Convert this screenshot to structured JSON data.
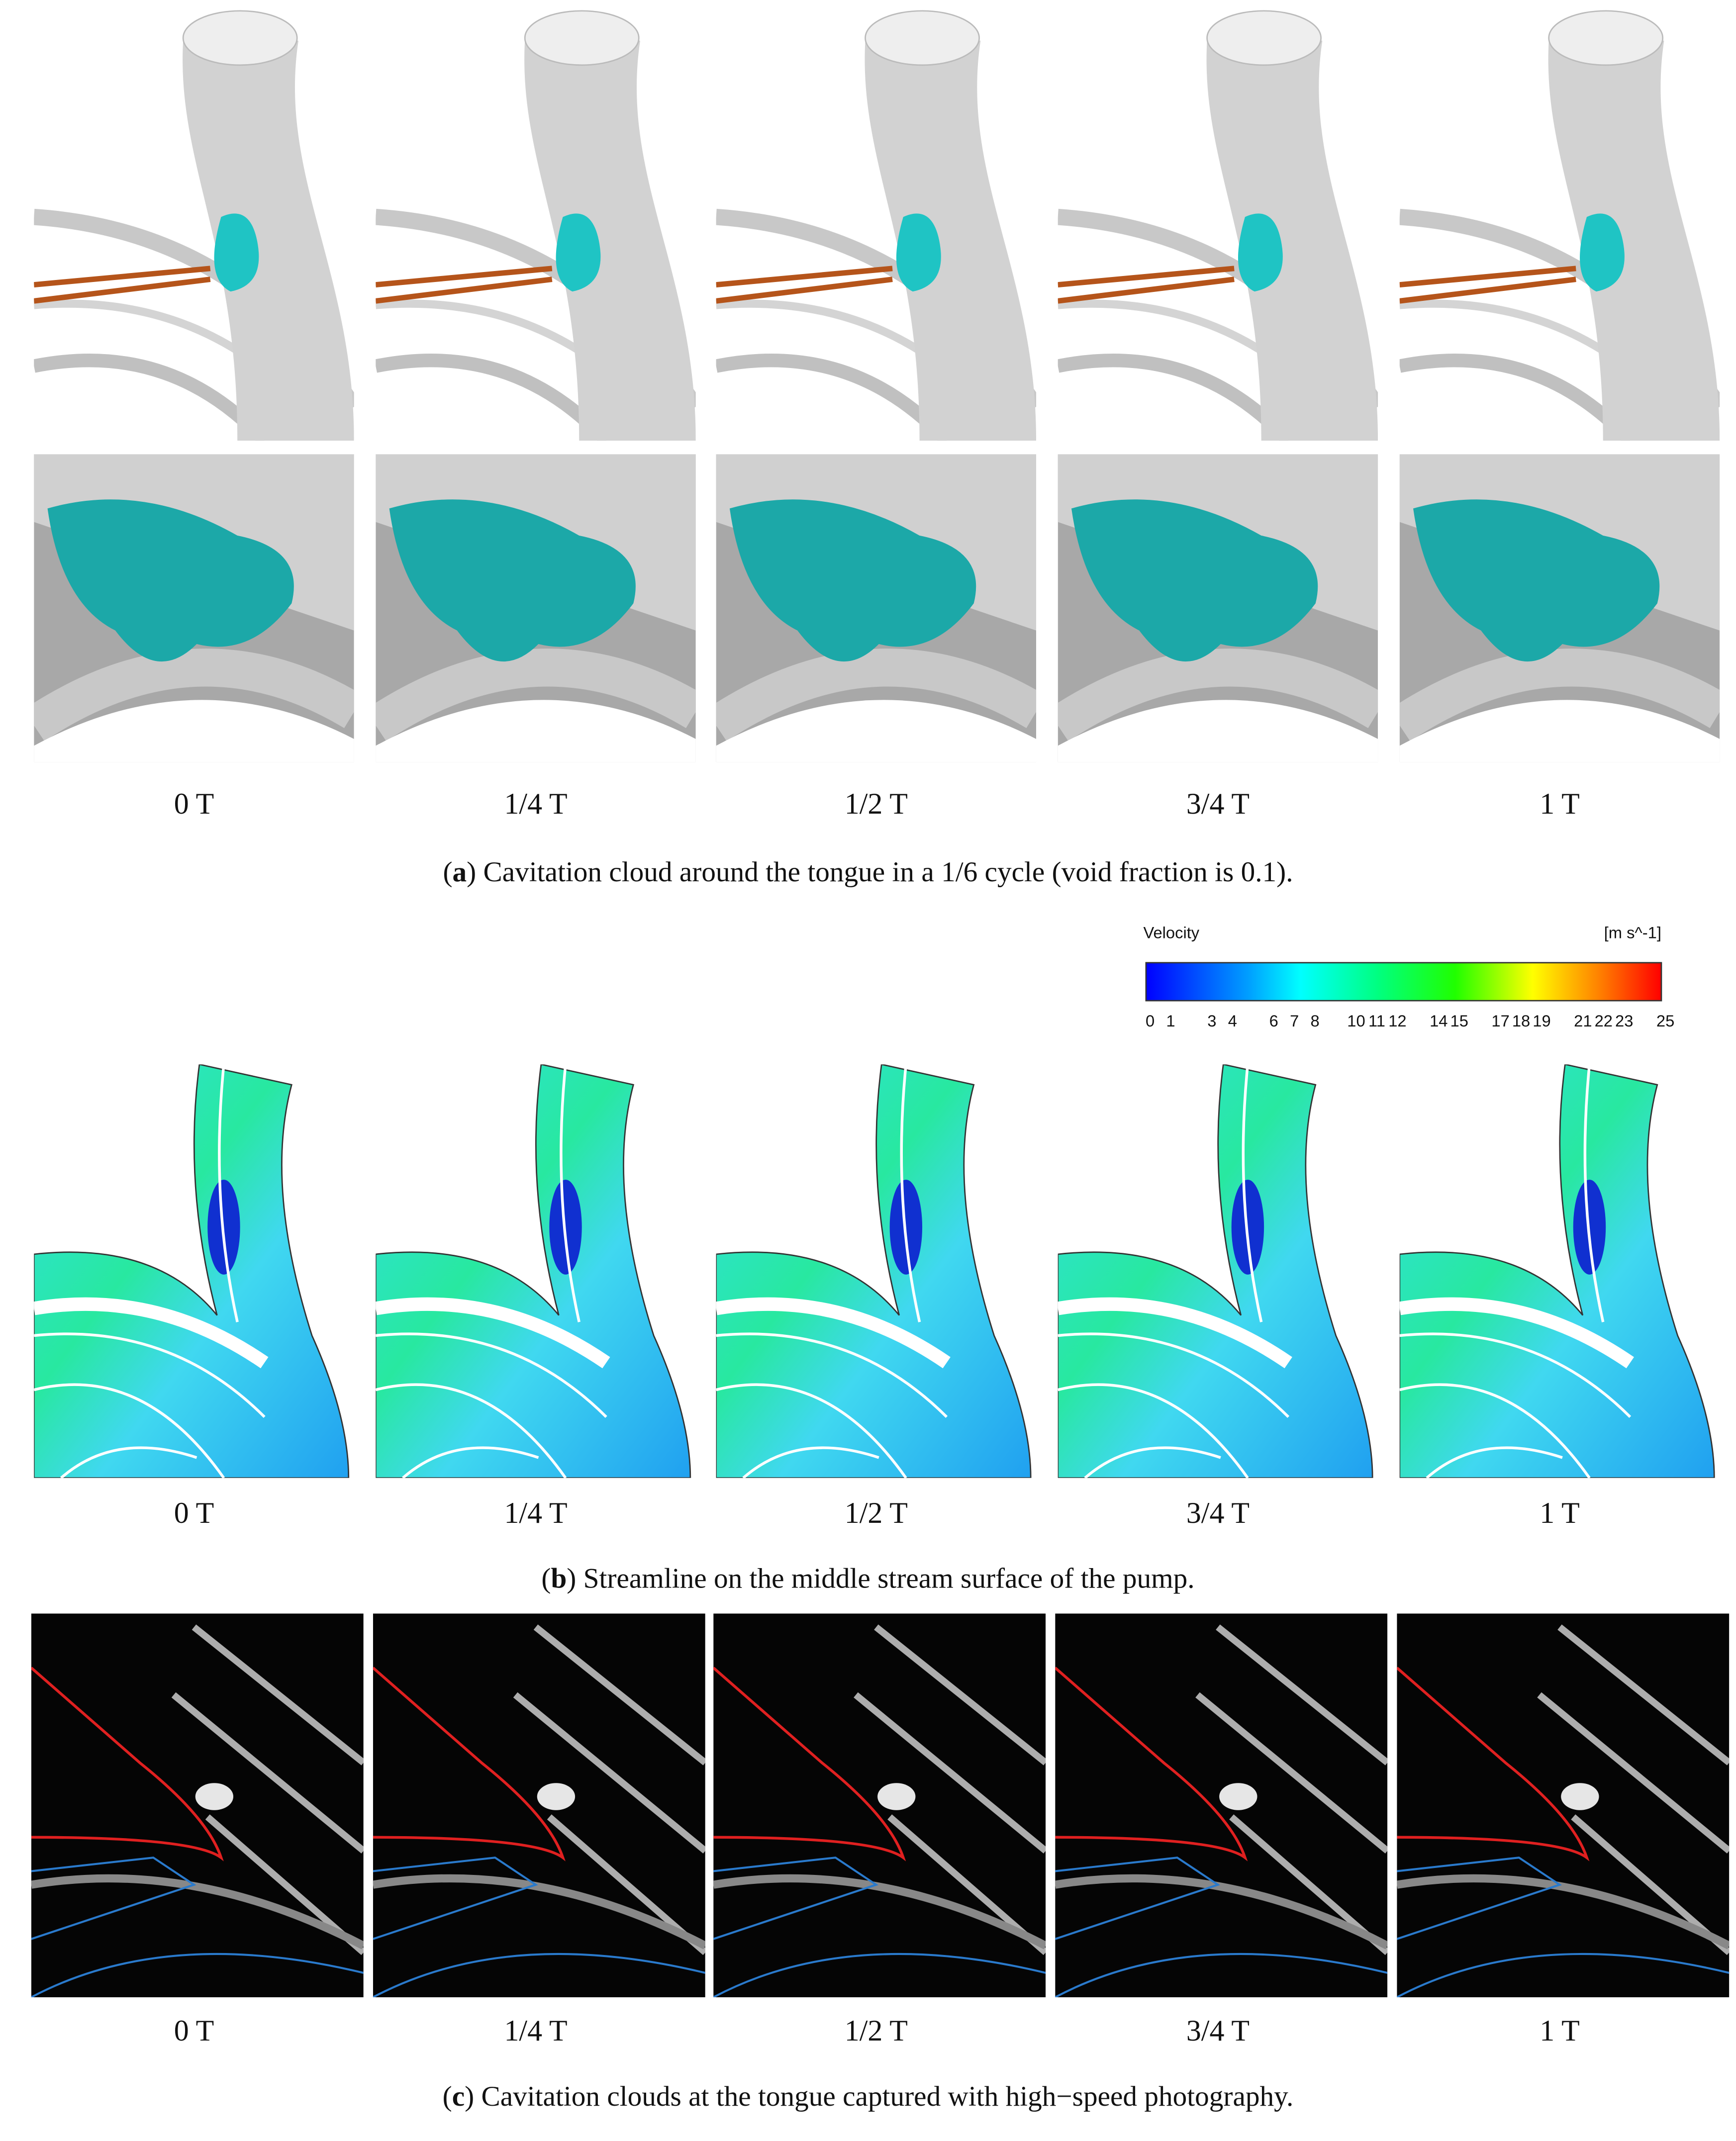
{
  "panels": [
    {
      "time_labels": [
        "0 T",
        "1/4 T",
        "1/2 T",
        "3/4 T",
        "1 T"
      ],
      "caption": [
        "(",
        "a",
        ") Cavitation cloud around the tongue in a 1/6 cycle (void fraction is 0.1)."
      ]
    },
    {
      "time_labels": [
        "0 T",
        "1/4 T",
        "1/2 T",
        "3/4 T",
        "1 T"
      ],
      "caption": [
        "(",
        "b",
        ") Streamline on the middle stream surface of the pump."
      ]
    },
    {
      "time_labels": [
        "0 T",
        "1/4 T",
        "1/2 T",
        "3/4 T",
        "1 T"
      ],
      "caption": [
        "(",
        "c",
        ") Cavitation clouds at the tongue captured with high−speed photography."
      ]
    }
  ],
  "colorbar": {
    "title": "Velocity",
    "unit": "[m s^-1]",
    "range": [
      0,
      25
    ],
    "ticks": [
      0,
      1,
      3,
      4,
      6,
      7,
      8,
      10,
      11,
      12,
      14,
      15,
      17,
      18,
      19,
      21,
      22,
      23,
      25
    ]
  }
}
